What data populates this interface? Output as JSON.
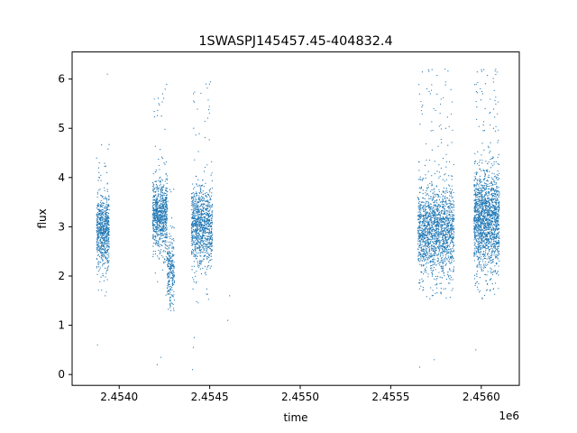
{
  "chart_data": {
    "type": "scatter",
    "title": "1SWASPJ145457.45-404832.4",
    "xlabel": "time",
    "ylabel": "flux",
    "x_offset_label": "1e6",
    "x_tick_labels": [
      "2.4540",
      "2.4545",
      "2.4550",
      "2.4555",
      "2.4560"
    ],
    "x_tick_values": [
      2454000,
      2454500,
      2455000,
      2455500,
      2456000
    ],
    "y_tick_labels": [
      "0",
      "1",
      "2",
      "3",
      "4",
      "5",
      "6"
    ],
    "y_tick_values": [
      0,
      1,
      2,
      3,
      4,
      5,
      6
    ],
    "xlim": [
      2453740,
      2456210
    ],
    "ylim": [
      -0.22,
      6.55
    ],
    "grid": false,
    "marker_color": "#1f77b4",
    "series": [
      {
        "values": [
          {
            "x_range": [
              2453875,
              2453945
            ],
            "y_center": 2.9,
            "y_spread": 0.35,
            "y_range": [
              1.6,
              4.8
            ],
            "n": 700
          },
          {
            "x_range": [
              2454185,
              2454265
            ],
            "y_center": 3.2,
            "y_spread": 0.35,
            "y_range": [
              1.6,
              5.9
            ],
            "n": 800
          },
          {
            "x_range": [
              2454265,
              2454305
            ],
            "y_center": 2.1,
            "y_spread": 0.35,
            "y_range": [
              1.3,
              4.0
            ],
            "n": 250
          },
          {
            "x_range": [
              2454400,
              2454515
            ],
            "y_center": 3.0,
            "y_spread": 0.4,
            "y_range": [
              1.4,
              6.0
            ],
            "n": 1000
          },
          {
            "x_range": [
              2455650,
              2455850
            ],
            "y_center": 2.9,
            "y_spread": 0.45,
            "y_range": [
              1.5,
              6.2
            ],
            "n": 1700
          },
          {
            "x_range": [
              2455960,
              2456100
            ],
            "y_center": 3.1,
            "y_spread": 0.5,
            "y_range": [
              1.5,
              6.2
            ],
            "n": 1700
          }
        ],
        "outliers": [
          {
            "x": 2453880,
            "y": 0.6
          },
          {
            "x": 2453935,
            "y": 6.1
          },
          {
            "x": 2454210,
            "y": 0.2
          },
          {
            "x": 2454230,
            "y": 0.35
          },
          {
            "x": 2454240,
            "y": 5.7
          },
          {
            "x": 2454405,
            "y": 0.1
          },
          {
            "x": 2454410,
            "y": 0.55
          },
          {
            "x": 2454415,
            "y": 0.75
          },
          {
            "x": 2454480,
            "y": 5.9
          },
          {
            "x": 2454600,
            "y": 1.1
          },
          {
            "x": 2454610,
            "y": 1.6
          },
          {
            "x": 2455660,
            "y": 0.15
          },
          {
            "x": 2455740,
            "y": 0.3
          },
          {
            "x": 2455800,
            "y": 6.2
          },
          {
            "x": 2455970,
            "y": 0.5
          },
          {
            "x": 2456080,
            "y": 6.2
          }
        ]
      }
    ]
  }
}
